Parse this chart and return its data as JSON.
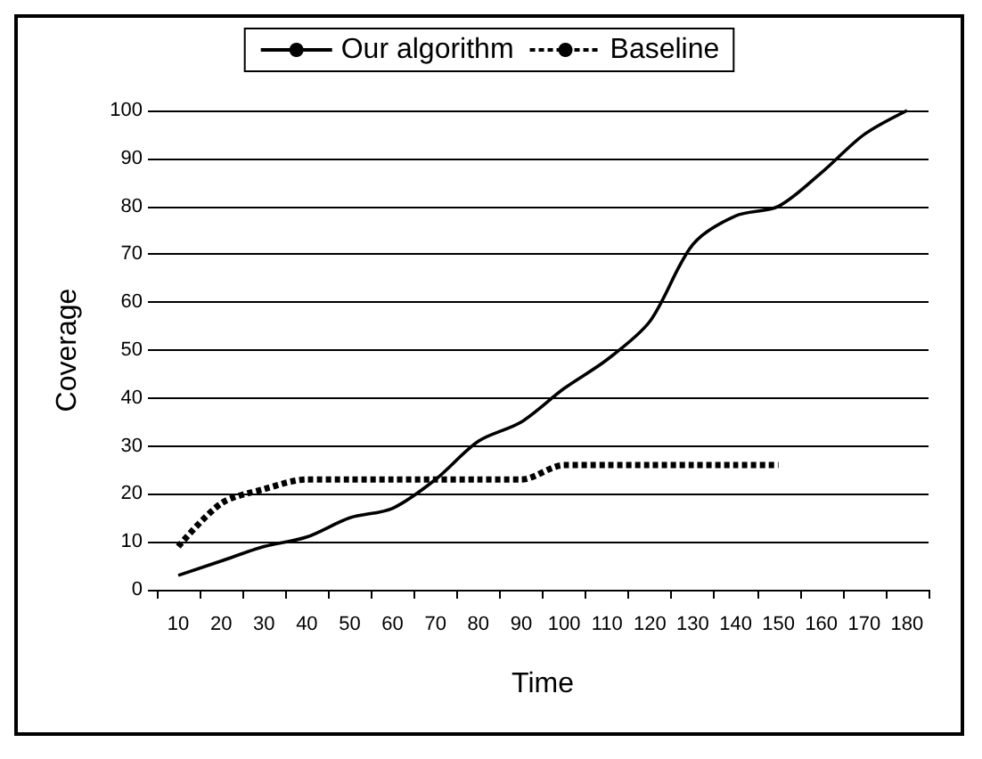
{
  "chart_data": {
    "type": "line",
    "xlabel": "Time",
    "ylabel": "Coverage",
    "categories": [
      "10",
      "20",
      "30",
      "40",
      "50",
      "60",
      "70",
      "80",
      "90",
      "100",
      "110",
      "120",
      "130",
      "140",
      "150",
      "160",
      "170",
      "180"
    ],
    "series": [
      {
        "name": "Our algorithm",
        "color": "#000000",
        "line_style": "solid",
        "values": [
          3,
          6,
          9,
          11,
          15,
          17,
          23,
          31,
          35,
          42,
          48,
          56,
          72,
          78,
          80,
          87,
          95,
          100
        ]
      },
      {
        "name": "Baseline",
        "color": "#000000",
        "line_style": "dotted",
        "values": [
          9,
          18,
          21,
          23,
          23,
          23,
          23,
          23,
          23,
          26,
          26,
          26,
          26,
          26,
          26,
          null,
          null,
          null
        ]
      }
    ],
    "ylim": [
      0,
      100
    ],
    "yticks": [
      0,
      10,
      20,
      30,
      40,
      50,
      60,
      70,
      80,
      90,
      100
    ],
    "grid": "y",
    "legend": "top",
    "marker": "none"
  }
}
